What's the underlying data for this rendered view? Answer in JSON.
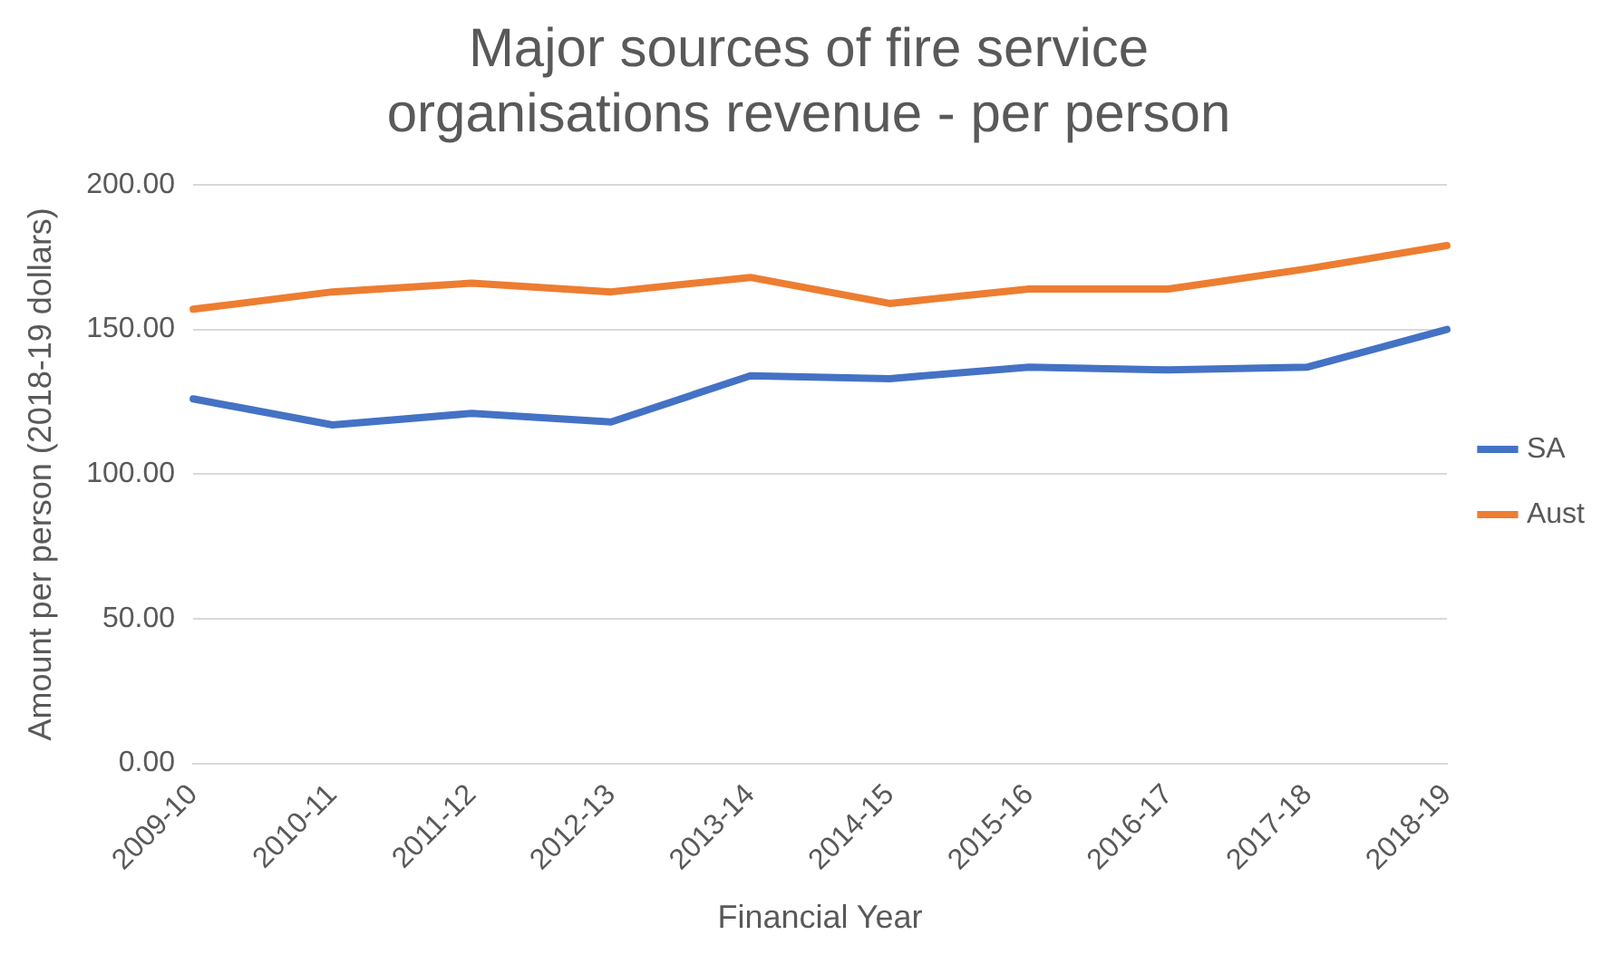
{
  "chart_data": {
    "type": "line",
    "title": "Major sources of fire service organisations revenue - per person",
    "xlabel": "Financial Year",
    "ylabel": "Amount per person (2018-19 dollars)",
    "categories": [
      "2009-10",
      "2010-11",
      "2011-12",
      "2012-13",
      "2013-14",
      "2014-15",
      "2015-16",
      "2016-17",
      "2017-18",
      "2018-19"
    ],
    "series": [
      {
        "name": "SA",
        "color": "#4472c4",
        "values": [
          126,
          117,
          121,
          118,
          134,
          133,
          137,
          136,
          137,
          150
        ]
      },
      {
        "name": "Aust",
        "color": "#ed7d31",
        "values": [
          157,
          163,
          166,
          163,
          168,
          159,
          164,
          164,
          171,
          179
        ]
      }
    ],
    "ylim": [
      0,
      200
    ],
    "yticks": [
      {
        "value": 0,
        "label": "0.00"
      },
      {
        "value": 50,
        "label": "50.00"
      },
      {
        "value": 100,
        "label": "100.00"
      },
      {
        "value": 150,
        "label": "150.00"
      },
      {
        "value": 200,
        "label": "200.00"
      }
    ],
    "grid": "y",
    "legend": "right",
    "marker": "none",
    "line_style": "solid"
  }
}
